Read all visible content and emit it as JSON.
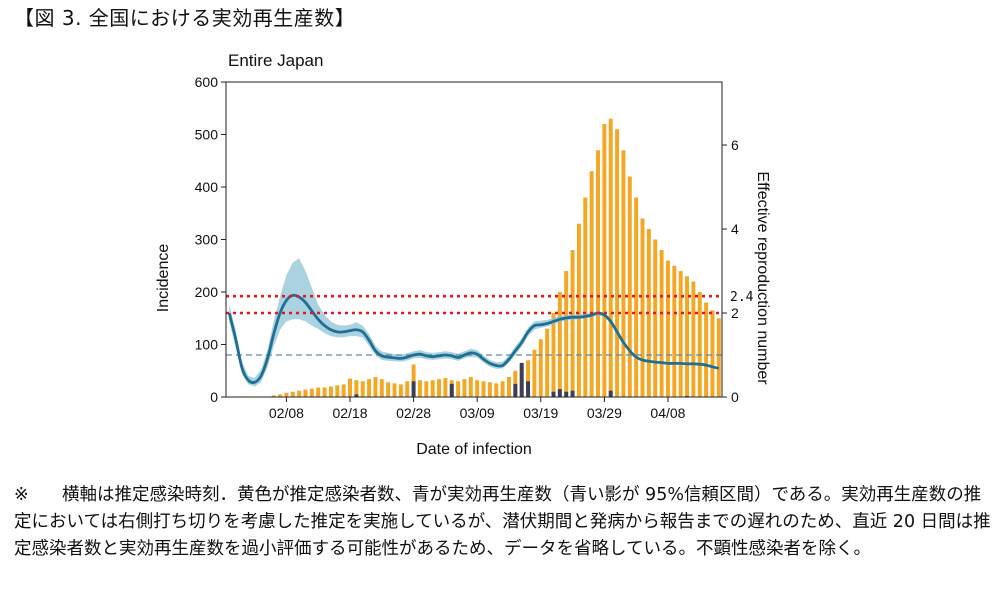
{
  "figure_heading": "【図 3.  全国における実効再生産数】",
  "note": {
    "marker": "※",
    "text": "横軸は推定感染時刻．黄色が推定感染者数、青が実効再生産数（青い影が 95%信頼区間）である。実効再生産数の推定においては右側打ち切りを考慮した推定を実施しているが、潜伏期間と発病から報告までの遅れのため、直近 20 日間は推定感染者数と実効再生産数を過小評価する可能性があるため、データを省略している。不顕性感染者を除く。"
  },
  "chart_data": {
    "type": "bar",
    "title": "Entire Japan",
    "xlabel": "Date of infection",
    "ylabel": "Incidence",
    "y2label": "Effective reproduction number",
    "ylim": [
      0,
      600
    ],
    "y2lim": [
      0,
      7.5
    ],
    "yticks": [
      0,
      100,
      200,
      300,
      400,
      500,
      600
    ],
    "y2ticks": [
      0,
      2,
      4,
      6
    ],
    "xtick_labels": [
      "02/08",
      "02/18",
      "02/28",
      "03/09",
      "03/19",
      "03/29",
      "04/08"
    ],
    "xtick_index": [
      9,
      19,
      29,
      39,
      49,
      59,
      69
    ],
    "start_date": "01/31",
    "colors": {
      "incidence": "#f5a623",
      "imported": "#3a3f55",
      "rt": "#1f6f93",
      "ci": "#8dc3d6",
      "threshold": "#e0191e",
      "reference": "#5a8aa8"
    },
    "series": [
      {
        "name": "Incidence",
        "values": [
          0,
          0,
          0,
          0,
          0,
          0,
          0,
          3,
          5,
          8,
          10,
          12,
          14,
          16,
          18,
          18,
          20,
          22,
          24,
          35,
          32,
          30,
          34,
          38,
          34,
          28,
          26,
          24,
          30,
          62,
          32,
          30,
          32,
          34,
          36,
          32,
          30,
          34,
          38,
          32,
          30,
          28,
          26,
          30,
          38,
          50,
          60,
          70,
          90,
          110,
          130,
          160,
          200,
          240,
          280,
          330,
          380,
          430,
          470,
          520,
          530,
          510,
          470,
          420,
          380,
          340,
          320,
          300,
          280,
          260,
          250,
          240,
          230,
          220,
          200,
          180,
          165,
          150
        ]
      },
      {
        "name": "Imported",
        "values": [
          0,
          0,
          0,
          0,
          0,
          0,
          0,
          0,
          0,
          0,
          0,
          0,
          0,
          0,
          0,
          0,
          0,
          0,
          0,
          0,
          5,
          0,
          0,
          0,
          0,
          0,
          0,
          0,
          0,
          30,
          0,
          0,
          0,
          0,
          0,
          25,
          0,
          0,
          0,
          0,
          0,
          0,
          0,
          0,
          0,
          25,
          65,
          30,
          0,
          0,
          0,
          10,
          15,
          10,
          12,
          0,
          0,
          0,
          0,
          0,
          12,
          0,
          0,
          0,
          0,
          0,
          0,
          0,
          0,
          0,
          0,
          0,
          2,
          0,
          0,
          0,
          0,
          0
        ]
      },
      {
        "name": "Rt",
        "values": [
          2.0,
          1.4,
          0.7,
          0.4,
          0.35,
          0.5,
          0.9,
          1.5,
          2.0,
          2.3,
          2.42,
          2.38,
          2.25,
          2.05,
          1.85,
          1.7,
          1.6,
          1.55,
          1.55,
          1.58,
          1.6,
          1.55,
          1.35,
          1.1,
          0.98,
          0.95,
          0.93,
          0.92,
          0.95,
          1.0,
          1.02,
          0.98,
          0.96,
          0.98,
          1.0,
          0.98,
          0.94,
          1.0,
          1.05,
          1.02,
          0.9,
          0.8,
          0.75,
          0.75,
          0.9,
          1.1,
          1.3,
          1.55,
          1.7,
          1.72,
          1.75,
          1.8,
          1.85,
          1.88,
          1.9,
          1.9,
          1.92,
          1.95,
          2.0,
          1.95,
          1.8,
          1.55,
          1.3,
          1.1,
          0.95,
          0.88,
          0.85,
          0.83,
          0.82,
          0.8,
          0.8,
          0.8,
          0.79,
          0.79,
          0.78,
          0.76,
          0.72,
          0.68
        ]
      },
      {
        "name": "CI lower",
        "values": [
          1.8,
          1.2,
          0.55,
          0.3,
          0.25,
          0.35,
          0.7,
          1.2,
          1.6,
          1.8,
          1.85,
          1.85,
          1.8,
          1.7,
          1.62,
          1.52,
          1.45,
          1.42,
          1.42,
          1.45,
          1.45,
          1.42,
          1.22,
          1.0,
          0.88,
          0.86,
          0.85,
          0.84,
          0.87,
          0.92,
          0.93,
          0.9,
          0.88,
          0.9,
          0.92,
          0.9,
          0.86,
          0.92,
          0.96,
          0.94,
          0.82,
          0.72,
          0.67,
          0.68,
          0.82,
          1.0,
          1.2,
          1.45,
          1.6,
          1.65,
          1.68,
          1.73,
          1.78,
          1.82,
          1.84,
          1.85,
          1.87,
          1.9,
          1.95,
          1.9,
          1.75,
          1.5,
          1.27,
          1.07,
          0.93,
          0.86,
          0.83,
          0.81,
          0.8,
          0.79,
          0.79,
          0.79,
          0.78,
          0.78,
          0.77,
          0.75,
          0.71,
          0.67
        ]
      },
      {
        "name": "CI upper",
        "values": [
          2.2,
          1.6,
          0.85,
          0.5,
          0.45,
          0.65,
          1.1,
          1.8,
          2.4,
          2.9,
          3.2,
          3.3,
          3.0,
          2.6,
          2.2,
          1.95,
          1.8,
          1.72,
          1.7,
          1.72,
          1.78,
          1.7,
          1.5,
          1.22,
          1.08,
          1.05,
          1.02,
          1.01,
          1.04,
          1.09,
          1.12,
          1.07,
          1.05,
          1.07,
          1.09,
          1.07,
          1.03,
          1.09,
          1.15,
          1.12,
          0.99,
          0.88,
          0.83,
          0.84,
          0.99,
          1.2,
          1.4,
          1.65,
          1.8,
          1.82,
          1.84,
          1.88,
          1.93,
          1.95,
          1.96,
          1.96,
          1.98,
          2.0,
          2.05,
          2.0,
          1.85,
          1.6,
          1.34,
          1.13,
          0.97,
          0.9,
          0.87,
          0.85,
          0.84,
          0.82,
          0.81,
          0.81,
          0.8,
          0.8,
          0.79,
          0.77,
          0.73,
          0.69
        ]
      }
    ],
    "thresholds": [
      {
        "label": "2.4",
        "value": 2.4
      },
      {
        "label": "2",
        "value": 2.0
      }
    ],
    "reference_line": 1.0
  }
}
